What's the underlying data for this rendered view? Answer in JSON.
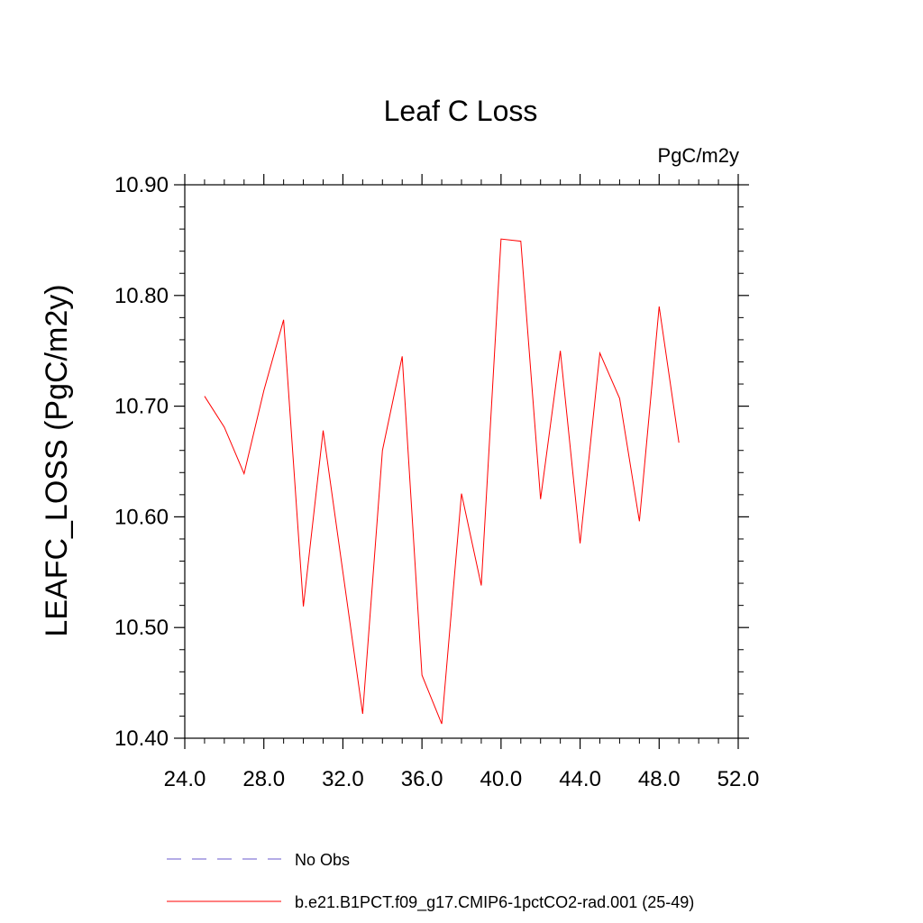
{
  "chart_data": {
    "type": "line",
    "title": "Leaf C Loss",
    "units": "PgC/m2y",
    "xlabel": "",
    "ylabel": "LEAFC_LOSS  (PgC/m2y)",
    "xlim": [
      24.0,
      52.0
    ],
    "ylim": [
      10.4,
      10.9
    ],
    "x_ticks": [
      "24.0",
      "28.0",
      "32.0",
      "36.0",
      "40.0",
      "44.0",
      "48.0",
      "52.0"
    ],
    "y_ticks": [
      "10.40",
      "10.50",
      "10.60",
      "10.70",
      "10.80",
      "10.90"
    ],
    "grid": false,
    "legend_position": "bottom",
    "series": [
      {
        "name": "No Obs",
        "color": "#6a5acd",
        "style": "dashed",
        "x": [],
        "y": []
      },
      {
        "name": "b.e21.B1PCT.f09_g17.CMIP6-1pctCO2-rad.001 (25-49)",
        "color": "#ff0000",
        "style": "solid",
        "x": [
          25,
          26,
          27,
          28,
          29,
          30,
          31,
          32,
          33,
          34,
          35,
          36,
          37,
          38,
          39,
          40,
          41,
          42,
          43,
          44,
          45,
          46,
          47,
          48,
          49
        ],
        "y": [
          10.709,
          10.681,
          10.639,
          10.714,
          10.778,
          10.519,
          10.678,
          10.55,
          10.422,
          10.66,
          10.745,
          10.457,
          10.413,
          10.621,
          10.538,
          10.851,
          10.849,
          10.616,
          10.75,
          10.576,
          10.748,
          10.707,
          10.596,
          10.79,
          10.667
        ]
      }
    ]
  }
}
